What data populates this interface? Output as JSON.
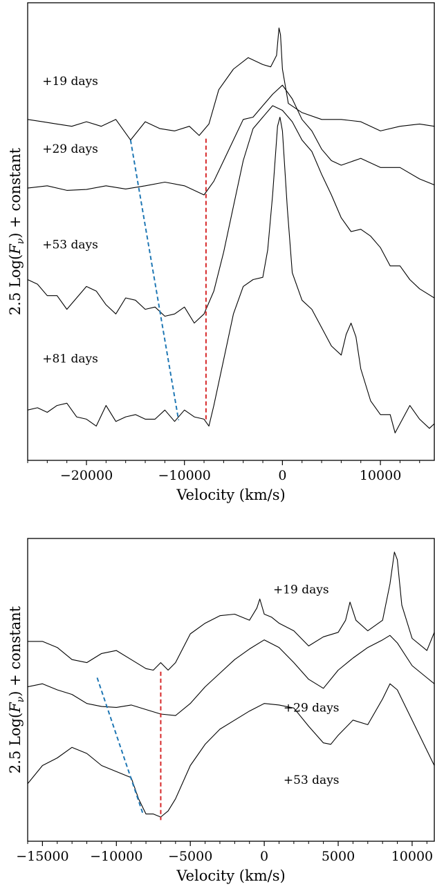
{
  "chart_data": [
    {
      "type": "line",
      "xlabel": "Velocity (km/s)",
      "ylabel": "2.5 Log(F_ν) + constant",
      "ylabel_parts": {
        "prefix": "2.5 Log(",
        "italic": "F",
        "sub": "ν",
        "suffix": ") + constant"
      },
      "xlim": [
        -26000,
        15500
      ],
      "ylim": [
        0,
        1
      ],
      "xticks": [
        -20000,
        -10000,
        0,
        10000
      ],
      "xtick_labels": [
        "−20000",
        "−10000",
        "0",
        "10000"
      ],
      "minor_xtick_step": 2000,
      "grid": false,
      "series": [
        {
          "label": "+19 days",
          "label_pos": {
            "x": -24500,
            "y": 0.82
          },
          "x": [
            -26000,
            -24500,
            -23000,
            -21500,
            -20000,
            -18500,
            -17000,
            -15500,
            -14000,
            -12500,
            -11000,
            -9500,
            -8500,
            -7500,
            -6500,
            -5000,
            -3500,
            -2000,
            -1200,
            -600,
            -350,
            -200,
            0,
            600,
            2000,
            4000,
            6000,
            8000,
            10000,
            12000,
            14000,
            15500
          ],
          "y": [
            0.745,
            0.74,
            0.735,
            0.73,
            0.74,
            0.73,
            0.745,
            0.7,
            0.74,
            0.725,
            0.72,
            0.73,
            0.71,
            0.735,
            0.81,
            0.855,
            0.88,
            0.865,
            0.86,
            0.885,
            0.945,
            0.93,
            0.855,
            0.78,
            0.76,
            0.745,
            0.745,
            0.74,
            0.72,
            0.73,
            0.735,
            0.73
          ]
        },
        {
          "label": "+29 days",
          "label_pos": {
            "x": -24500,
            "y": 0.672
          },
          "x": [
            -26000,
            -24000,
            -22000,
            -20000,
            -18000,
            -16000,
            -14000,
            -12000,
            -10000,
            -9000,
            -8000,
            -7000,
            -6000,
            -5000,
            -4000,
            -3000,
            -2000,
            -1000,
            0,
            1000,
            2000,
            3000,
            4000,
            5000,
            6000,
            8000,
            10000,
            12000,
            14000,
            15500
          ],
          "y": [
            0.595,
            0.6,
            0.59,
            0.592,
            0.6,
            0.593,
            0.6,
            0.608,
            0.6,
            0.59,
            0.58,
            0.61,
            0.655,
            0.7,
            0.745,
            0.75,
            0.775,
            0.8,
            0.82,
            0.79,
            0.745,
            0.72,
            0.68,
            0.655,
            0.645,
            0.66,
            0.64,
            0.64,
            0.615,
            0.602
          ]
        },
        {
          "label": "+53 days",
          "label_pos": {
            "x": -24500,
            "y": 0.463
          },
          "x": [
            -26000,
            -25000,
            -24000,
            -23000,
            -22000,
            -21000,
            -20000,
            -19000,
            -18000,
            -17000,
            -16000,
            -15000,
            -14000,
            -13000,
            -12000,
            -11000,
            -10000,
            -9000,
            -8000,
            -7000,
            -6000,
            -5000,
            -4000,
            -3000,
            -2000,
            -1000,
            0,
            1000,
            2000,
            3000,
            4000,
            5000,
            6000,
            7000,
            8000,
            9000,
            10000,
            11000,
            12000,
            13000,
            14000,
            15500
          ],
          "y": [
            0.395,
            0.385,
            0.36,
            0.36,
            0.33,
            0.355,
            0.38,
            0.37,
            0.34,
            0.32,
            0.355,
            0.35,
            0.33,
            0.335,
            0.315,
            0.32,
            0.335,
            0.3,
            0.32,
            0.37,
            0.455,
            0.555,
            0.655,
            0.725,
            0.75,
            0.775,
            0.765,
            0.74,
            0.7,
            0.675,
            0.625,
            0.58,
            0.53,
            0.5,
            0.505,
            0.49,
            0.465,
            0.425,
            0.425,
            0.395,
            0.375,
            0.355
          ]
        },
        {
          "label": "+81 days",
          "label_pos": {
            "x": -24500,
            "y": 0.214
          },
          "x": [
            -26000,
            -25000,
            -24000,
            -23000,
            -22000,
            -21000,
            -20000,
            -19000,
            -18000,
            -17000,
            -16000,
            -15000,
            -14000,
            -13000,
            -12000,
            -11000,
            -10000,
            -9000,
            -8000,
            -7500,
            -7000,
            -6000,
            -5000,
            -4000,
            -3000,
            -2000,
            -1500,
            -1000,
            -500,
            -250,
            0,
            500,
            1000,
            2000,
            3000,
            4000,
            5000,
            6000,
            6500,
            7000,
            7500,
            8000,
            9000,
            10000,
            11000,
            11500,
            12000,
            13000,
            14000,
            15000,
            15500
          ],
          "y": [
            0.11,
            0.115,
            0.105,
            0.12,
            0.125,
            0.095,
            0.09,
            0.075,
            0.12,
            0.085,
            0.095,
            0.1,
            0.09,
            0.09,
            0.11,
            0.085,
            0.11,
            0.095,
            0.09,
            0.075,
            0.12,
            0.22,
            0.32,
            0.38,
            0.395,
            0.4,
            0.46,
            0.58,
            0.73,
            0.75,
            0.72,
            0.55,
            0.41,
            0.35,
            0.33,
            0.29,
            0.25,
            0.23,
            0.275,
            0.3,
            0.27,
            0.2,
            0.13,
            0.1,
            0.1,
            0.06,
            0.08,
            0.12,
            0.09,
            0.07,
            0.08
          ]
        }
      ],
      "markers": [
        {
          "color": "#1f77b4",
          "x": [
            -15500,
            -10600
          ],
          "y": [
            0.7,
            0.088
          ]
        },
        {
          "color": "#d62728",
          "x": [
            -7800,
            -7800
          ],
          "y": [
            0.703,
            0.088
          ]
        }
      ]
    },
    {
      "type": "line",
      "xlabel": "Velocity (km/s)",
      "ylabel": "2.5 Log(F_ν) + constant",
      "ylabel_parts": {
        "prefix": "2.5 Log(",
        "italic": "F",
        "sub": "ν",
        "suffix": ") + constant"
      },
      "xlim": [
        -16000,
        11500
      ],
      "ylim": [
        0,
        1
      ],
      "xticks": [
        -15000,
        -10000,
        -5000,
        0,
        5000,
        10000
      ],
      "xtick_labels": [
        "−15000",
        "−10000",
        "−5000",
        "0",
        "5000",
        "10000"
      ],
      "minor_xtick_step": 1000,
      "grid": false,
      "series": [
        {
          "label": "+19 days",
          "label_pos": {
            "x": 600,
            "y": 0.818
          },
          "x": [
            -16000,
            -15000,
            -14000,
            -13000,
            -12000,
            -11000,
            -10000,
            -9000,
            -8000,
            -7500,
            -7000,
            -6500,
            -6000,
            -5000,
            -4000,
            -3000,
            -2000,
            -1000,
            -500,
            -300,
            0,
            500,
            1000,
            2000,
            3000,
            4000,
            5000,
            5500,
            5800,
            6200,
            7000,
            8000,
            8500,
            8800,
            9000,
            9300,
            10000,
            11000,
            11500
          ],
          "y": [
            0.66,
            0.66,
            0.64,
            0.6,
            0.59,
            0.62,
            0.63,
            0.6,
            0.57,
            0.565,
            0.59,
            0.565,
            0.59,
            0.685,
            0.72,
            0.745,
            0.75,
            0.73,
            0.77,
            0.8,
            0.75,
            0.74,
            0.72,
            0.695,
            0.645,
            0.675,
            0.69,
            0.73,
            0.79,
            0.73,
            0.695,
            0.73,
            0.85,
            0.955,
            0.93,
            0.78,
            0.67,
            0.63,
            0.69
          ]
        },
        {
          "label": "+29 days",
          "label_pos": {
            "x": 1300,
            "y": 0.428
          },
          "x": [
            -16000,
            -15000,
            -14000,
            -13000,
            -12000,
            -11000,
            -10000,
            -9000,
            -8000,
            -7000,
            -6000,
            -5000,
            -4000,
            -3000,
            -2000,
            -1000,
            0,
            1000,
            2000,
            3000,
            4000,
            5000,
            6000,
            7000,
            8000,
            8500,
            9000,
            10000,
            11000,
            11500
          ],
          "y": [
            0.51,
            0.52,
            0.5,
            0.485,
            0.455,
            0.445,
            0.442,
            0.45,
            0.435,
            0.42,
            0.415,
            0.455,
            0.51,
            0.555,
            0.6,
            0.635,
            0.665,
            0.64,
            0.59,
            0.535,
            0.505,
            0.565,
            0.605,
            0.64,
            0.665,
            0.68,
            0.655,
            0.58,
            0.54,
            0.52
          ]
        },
        {
          "label": "+53 days",
          "label_pos": {
            "x": 1300,
            "y": 0.19
          },
          "x": [
            -16000,
            -15000,
            -14000,
            -13000,
            -12000,
            -11000,
            -10000,
            -9000,
            -8500,
            -8000,
            -7500,
            -7000,
            -6500,
            -6000,
            -5000,
            -4000,
            -3000,
            -2000,
            -1000,
            0,
            1000,
            2000,
            3000,
            4000,
            4500,
            5000,
            6000,
            7000,
            8000,
            8500,
            9000,
            10000,
            11000,
            11500
          ],
          "y": [
            0.19,
            0.25,
            0.275,
            0.31,
            0.29,
            0.25,
            0.23,
            0.21,
            0.14,
            0.09,
            0.09,
            0.08,
            0.1,
            0.14,
            0.25,
            0.32,
            0.37,
            0.4,
            0.43,
            0.455,
            0.45,
            0.44,
            0.38,
            0.325,
            0.32,
            0.35,
            0.4,
            0.385,
            0.47,
            0.52,
            0.5,
            0.4,
            0.3,
            0.25
          ]
        }
      ],
      "markers": [
        {
          "color": "#1f77b4",
          "x": [
            -11300,
            -8200
          ],
          "y": [
            0.54,
            0.09
          ]
        },
        {
          "color": "#d62728",
          "x": [
            -7000,
            -7000
          ],
          "y": [
            0.56,
            0.07
          ]
        }
      ]
    }
  ]
}
